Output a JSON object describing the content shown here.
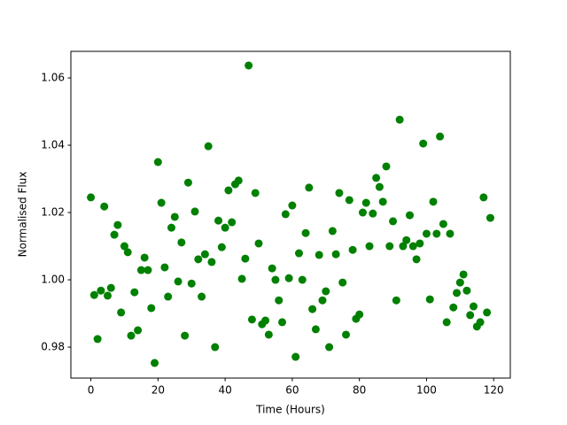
{
  "chart_data": {
    "type": "scatter",
    "xlabel": "Time (Hours)",
    "ylabel": "Normalised Flux",
    "color": "#008000",
    "x": [
      0,
      1,
      2,
      3,
      4,
      5,
      6,
      7,
      8,
      9,
      10,
      11,
      12,
      13,
      14,
      15,
      16,
      17,
      18,
      19,
      20,
      21,
      22,
      23,
      24,
      25,
      26,
      27,
      28,
      29,
      30,
      31,
      32,
      33,
      34,
      35,
      36,
      37,
      38,
      39,
      40,
      41,
      42,
      43,
      44,
      45,
      46,
      47,
      48,
      49,
      50,
      51,
      52,
      53,
      54,
      55,
      56,
      57,
      58,
      59,
      60,
      61,
      62,
      63,
      64,
      65,
      66,
      67,
      68,
      69,
      70,
      71,
      72,
      73,
      74,
      75,
      76,
      77,
      78,
      79,
      80,
      81,
      82,
      83,
      84,
      85,
      86,
      87,
      88,
      89,
      90,
      91,
      92,
      93,
      94,
      95,
      96,
      97,
      98,
      99,
      100,
      101,
      102,
      103,
      104,
      105,
      106,
      107,
      108,
      109,
      110,
      111,
      112,
      113,
      114,
      115,
      116,
      117,
      118,
      119
    ],
    "values": [
      1.0245,
      0.9955,
      0.9824,
      0.9968,
      1.0218,
      0.9953,
      0.9976,
      1.0134,
      1.0163,
      0.9903,
      1.01,
      1.0082,
      0.9834,
      0.9963,
      0.985,
      1.0029,
      1.0066,
      1.0029,
      0.9916,
      0.9753,
      1.035,
      1.0229,
      1.0037,
      0.995,
      1.0155,
      1.0187,
      0.9995,
      1.0111,
      0.9834,
      1.0289,
      0.9989,
      1.0203,
      1.0061,
      0.995,
      1.0076,
      1.0397,
      1.0053,
      0.98,
      1.0176,
      1.0097,
      1.0155,
      1.0266,
      1.0171,
      1.0284,
      1.0295,
      1.0003,
      1.0063,
      1.0637,
      0.9882,
      1.0258,
      1.0108,
      0.9868,
      0.9879,
      0.9837,
      1.0034,
      1.0,
      0.9939,
      0.9874,
      1.0195,
      1.0005,
      1.0221,
      0.9771,
      1.0079,
      1.0,
      1.0139,
      1.0274,
      0.9913,
      0.9853,
      1.0074,
      0.9939,
      0.9966,
      0.98,
      1.0145,
      1.0076,
      1.0258,
      0.9992,
      0.9837,
      1.0237,
      1.0089,
      0.9884,
      0.9897,
      1.02,
      1.0229,
      1.01,
      1.0197,
      1.0303,
      1.0276,
      1.0232,
      1.0337,
      1.01,
      1.0174,
      0.9939,
      1.0476,
      1.01,
      1.0118,
      1.0192,
      1.01,
      1.0061,
      1.0108,
      1.0405,
      1.0137,
      0.9942,
      1.0232,
      1.0137,
      1.0426,
      1.0166,
      0.9874,
      1.0137,
      0.9918,
      0.9961,
      0.9992,
      1.0016,
      0.9968,
      0.9895,
      0.9921,
      0.9861,
      0.9874,
      1.0245,
      0.9903,
      1.0184
    ],
    "xlim": [
      -5.95,
      124.95
    ],
    "ylim": [
      0.9708,
      1.0679
    ],
    "xticks": [
      0,
      20,
      40,
      60,
      80,
      100,
      120
    ],
    "yticks": [
      0.98,
      {
        "value": 1,
        "label": "1.00"
      },
      1.02,
      1.04,
      1.06
    ]
  }
}
